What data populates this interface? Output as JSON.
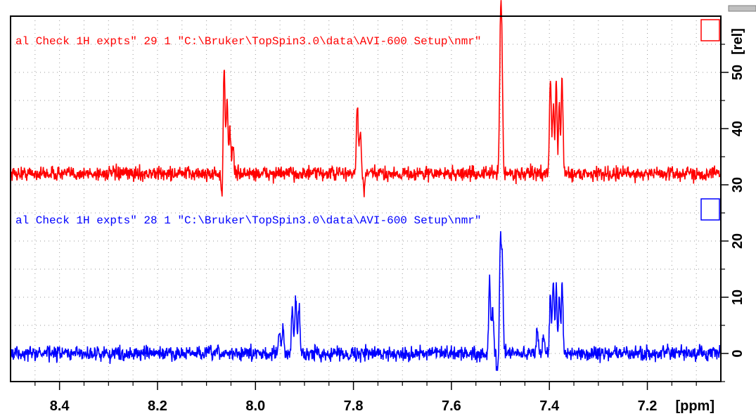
{
  "chart_data": {
    "type": "line",
    "x_unit_label": "[ppm]",
    "y_unit_label": "[rel]",
    "x_range": [
      8.5,
      7.05
    ],
    "y_range": [
      -5,
      60
    ],
    "x_ticks": [
      {
        "value": 8.4,
        "label": "8.4"
      },
      {
        "value": 8.2,
        "label": "8.2"
      },
      {
        "value": 8.0,
        "label": "8.0"
      },
      {
        "value": 7.8,
        "label": "7.8"
      },
      {
        "value": 7.6,
        "label": "7.6"
      },
      {
        "value": 7.4,
        "label": "7.4"
      },
      {
        "value": 7.2,
        "label": "7.2"
      }
    ],
    "y_ticks": [
      {
        "value": 0,
        "label": "0"
      },
      {
        "value": 10,
        "label": "10"
      },
      {
        "value": 20,
        "label": "20"
      },
      {
        "value": 30,
        "label": "30"
      },
      {
        "value": 40,
        "label": "40"
      },
      {
        "value": 50,
        "label": "50"
      }
    ],
    "grid": true,
    "series": [
      {
        "title": "al Check 1H expts\"  29  1  \"C:\\Bruker\\TopSpin3.0\\data\\AVI-600 Setup\\nmr\"",
        "color": "#ff0000",
        "baseline": 32,
        "noise": 0.9,
        "peaks": [
          {
            "x": 8.064,
            "y": 51
          },
          {
            "x": 8.058,
            "y": 45
          },
          {
            "x": 8.052,
            "y": 40
          },
          {
            "x": 8.046,
            "y": 37
          },
          {
            "x": 7.792,
            "y": 44.5
          },
          {
            "x": 7.786,
            "y": 39
          },
          {
            "x": 7.5,
            "y": 55
          },
          {
            "x": 7.497,
            "y": 52
          },
          {
            "x": 7.398,
            "y": 49
          },
          {
            "x": 7.392,
            "y": 44
          },
          {
            "x": 7.386,
            "y": 49
          },
          {
            "x": 7.38,
            "y": 44
          },
          {
            "x": 7.374,
            "y": 49
          }
        ],
        "dips": [
          {
            "x": 8.068,
            "y": 27
          },
          {
            "x": 7.778,
            "y": 29
          },
          {
            "x": 7.383,
            "y": 29
          }
        ]
      },
      {
        "title": "al Check 1H expts\"  28  1  \"C:\\Bruker\\TopSpin3.0\\data\\AVI-600 Setup\\nmr\"",
        "color": "#0000ff",
        "baseline": 0,
        "noise": 0.9,
        "peaks": [
          {
            "x": 7.951,
            "y": 4
          },
          {
            "x": 7.944,
            "y": 4.5
          },
          {
            "x": 7.925,
            "y": 8
          },
          {
            "x": 7.918,
            "y": 10
          },
          {
            "x": 7.911,
            "y": 9
          },
          {
            "x": 7.522,
            "y": 12.5
          },
          {
            "x": 7.516,
            "y": 8
          },
          {
            "x": 7.5,
            "y": 19.5
          },
          {
            "x": 7.496,
            "y": 16
          },
          {
            "x": 7.425,
            "y": 5
          },
          {
            "x": 7.412,
            "y": 3.5
          },
          {
            "x": 7.398,
            "y": 10
          },
          {
            "x": 7.392,
            "y": 12.5
          },
          {
            "x": 7.386,
            "y": 13
          },
          {
            "x": 7.38,
            "y": 11
          },
          {
            "x": 7.374,
            "y": 12
          }
        ],
        "dips": [
          {
            "x": 7.506,
            "y": -3.5
          },
          {
            "x": 7.383,
            "y": -3
          }
        ]
      }
    ]
  }
}
